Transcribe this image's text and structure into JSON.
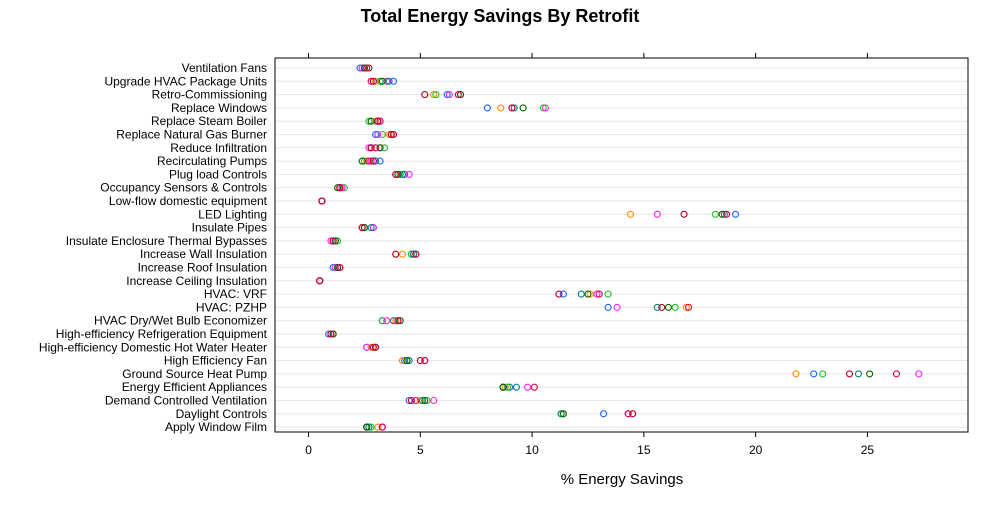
{
  "chart_data": {
    "type": "scatter",
    "title": "Total Energy Savings By Retrofit",
    "xlabel": "% Energy Savings",
    "ylabel": "",
    "xlim": [
      -1.5,
      29.5
    ],
    "xticks": [
      0,
      5,
      10,
      15,
      20,
      25
    ],
    "grid": "horizontal",
    "categories": [
      "Ventilation Fans",
      "Upgrade HVAC Package Units",
      "Retro-Commissioning",
      "Replace Windows",
      "Replace Steam Boiler",
      "Replace Natural Gas Burner",
      "Reduce Infiltration",
      "Recirculating Pumps",
      "Plug load Controls",
      "Occupancy Sensors & Controls",
      "Low-flow domestic equipment",
      "LED Lighting",
      "Insulate Pipes",
      "Insulate Enclosure Thermal Bypasses",
      "Increase Wall Insulation",
      "Increase Roof Insulation",
      "Increase Ceiling Insulation",
      "HVAC: VRF",
      "HVAC: PZHP",
      "HVAC Dry/Wet Bulb Economizer",
      "High-efficiency Refrigeration Equipment",
      "High-efficiency Domestic Hot Water Heater",
      "High Efficiency Fan",
      "Ground Source Heat Pump",
      "Energy Efficient Appliances",
      "Demand Controlled Ventilation",
      "Daylight Controls",
      "Apply Window Film"
    ],
    "series": [
      {
        "color": "#1f5fff",
        "values": [
          2.3,
          3.8,
          6.2,
          8.0,
          3.1,
          3.0,
          2.8,
          3.2,
          4.3,
          1.4,
          0.6,
          19.1,
          2.9,
          1.1,
          4.6,
          1.1,
          0.5,
          11.4,
          13.4,
          3.3,
          0.9,
          2.6,
          4.3,
          22.6,
          9.0,
          4.5,
          13.2,
          2.6
        ]
      },
      {
        "color": "#ff8c00",
        "values": [
          2.6,
          3.0,
          5.6,
          8.6,
          3.0,
          3.6,
          3.0,
          2.6,
          4.0,
          1.5,
          0.6,
          14.4,
          2.5,
          1.2,
          4.2,
          1.3,
          0.5,
          12.6,
          16.9,
          3.9,
          1.1,
          2.8,
          4.2,
          21.8,
          8.8,
          5.0,
          11.4,
          3.1
        ]
      },
      {
        "color": "#20c020",
        "values": [
          2.5,
          3.2,
          5.7,
          10.5,
          2.7,
          3.3,
          3.4,
          2.5,
          4.1,
          1.6,
          0.6,
          18.2,
          2.5,
          1.3,
          4.6,
          1.2,
          0.5,
          13.4,
          16.4,
          3.3,
          1.0,
          3.0,
          4.4,
          23.0,
          8.9,
          5.3,
          11.3,
          2.8
        ]
      },
      {
        "color": "#ff20ff",
        "values": [
          2.4,
          3.5,
          6.3,
          10.6,
          3.2,
          3.1,
          2.7,
          2.8,
          4.5,
          1.5,
          0.6,
          15.6,
          2.9,
          1.0,
          4.7,
          1.2,
          0.5,
          12.9,
          13.8,
          3.5,
          1.0,
          2.6,
          5.2,
          27.3,
          9.8,
          5.6,
          14.3,
          3.3
        ]
      },
      {
        "color": "#008080",
        "values": [
          2.5,
          3.6,
          6.8,
          9.2,
          3.1,
          3.7,
          3.2,
          3.0,
          4.2,
          1.4,
          0.6,
          18.6,
          2.8,
          1.2,
          4.7,
          1.3,
          0.5,
          12.2,
          15.6,
          3.8,
          1.0,
          3.0,
          4.5,
          24.6,
          9.3,
          5.1,
          11.3,
          2.7
        ]
      },
      {
        "color": "#b00020",
        "values": [
          2.7,
          2.9,
          5.2,
          9.1,
          3.1,
          3.7,
          2.8,
          2.9,
          3.9,
          1.4,
          0.6,
          16.8,
          2.4,
          1.1,
          3.9,
          1.4,
          0.5,
          11.2,
          15.8,
          4.0,
          1.1,
          2.9,
          5.0,
          24.2,
          8.7,
          4.6,
          14.5,
          2.6
        ]
      },
      {
        "color": "#006400",
        "values": [
          2.5,
          3.3,
          6.8,
          9.6,
          2.8,
          3.8,
          3.2,
          2.4,
          4.0,
          1.3,
          0.6,
          18.5,
          2.5,
          1.2,
          4.8,
          1.3,
          0.5,
          12.5,
          16.1,
          4.1,
          1.1,
          3.0,
          4.4,
          25.1,
          8.7,
          5.2,
          11.4,
          2.6
        ]
      },
      {
        "color": "#e0004a",
        "values": [
          2.6,
          2.8,
          6.7,
          9.1,
          3.2,
          3.8,
          3.0,
          2.7,
          3.9,
          1.4,
          0.6,
          18.7,
          2.4,
          1.1,
          4.8,
          1.4,
          0.5,
          13.0,
          17.0,
          4.0,
          1.0,
          3.0,
          5.2,
          26.3,
          10.1,
          4.8,
          14.3,
          3.3
        ]
      }
    ]
  }
}
